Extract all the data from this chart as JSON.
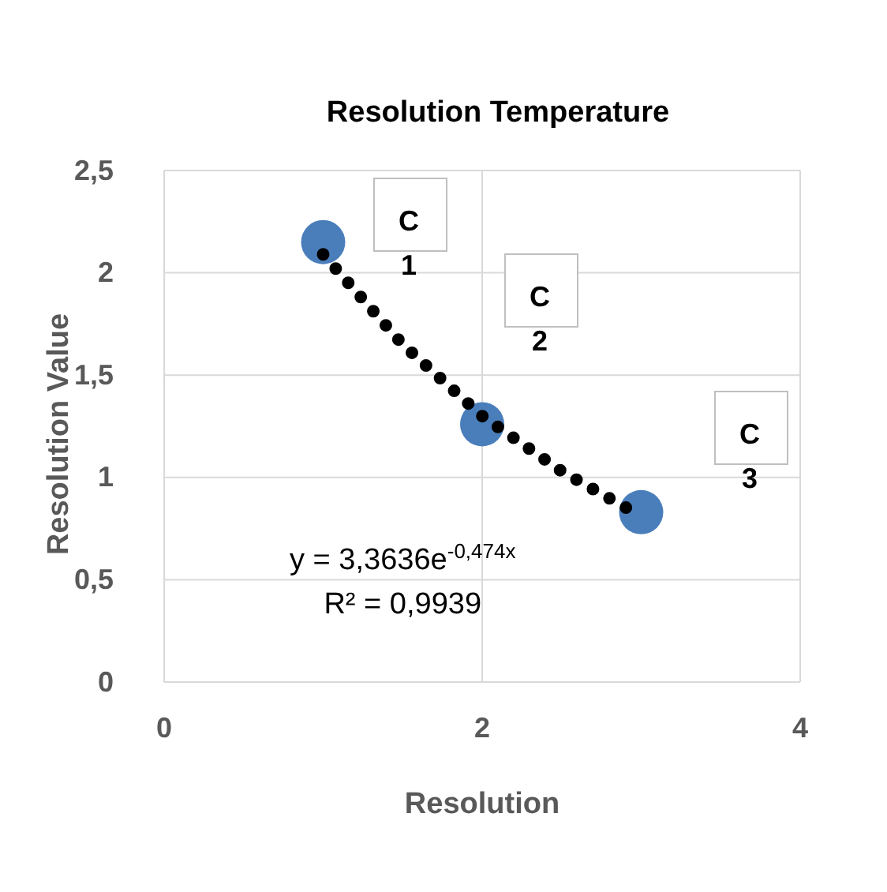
{
  "chart_data": {
    "type": "scatter",
    "title": "Resolution   Temperature",
    "xlabel": "Resolution",
    "ylabel": "Resolution Value",
    "x": [
      1,
      2,
      3
    ],
    "series": [
      {
        "color": "#4a7ebb",
        "values": [
          2.15,
          1.26,
          0.83
        ],
        "marker": "circle"
      },
      {
        "type": "line",
        "color": "#000000",
        "x": [
          1,
          1.5,
          2,
          2.5,
          3
        ],
        "values": [
          2.09,
          1.65,
          1.3,
          1.03,
          0.81
        ],
        "line_style": "dotted",
        "marker": "none"
      }
    ],
    "xlim": [
      0,
      4
    ],
    "xticks": [
      0,
      2,
      4
    ],
    "ylim": [
      0,
      2.5
    ],
    "yticks": [
      0,
      {
        "value": 0.5,
        "label": "0,5"
      },
      1,
      {
        "value": 1.5,
        "label": "1,5"
      },
      2,
      {
        "value": 2.5,
        "label": "2,5"
      }
    ],
    "grid": true,
    "annotations": [
      "C\n1",
      "C\n2",
      "C\n3",
      "y = 3,3636e$^{-0,474x}$",
      "R² = 0,9939"
    ]
  }
}
